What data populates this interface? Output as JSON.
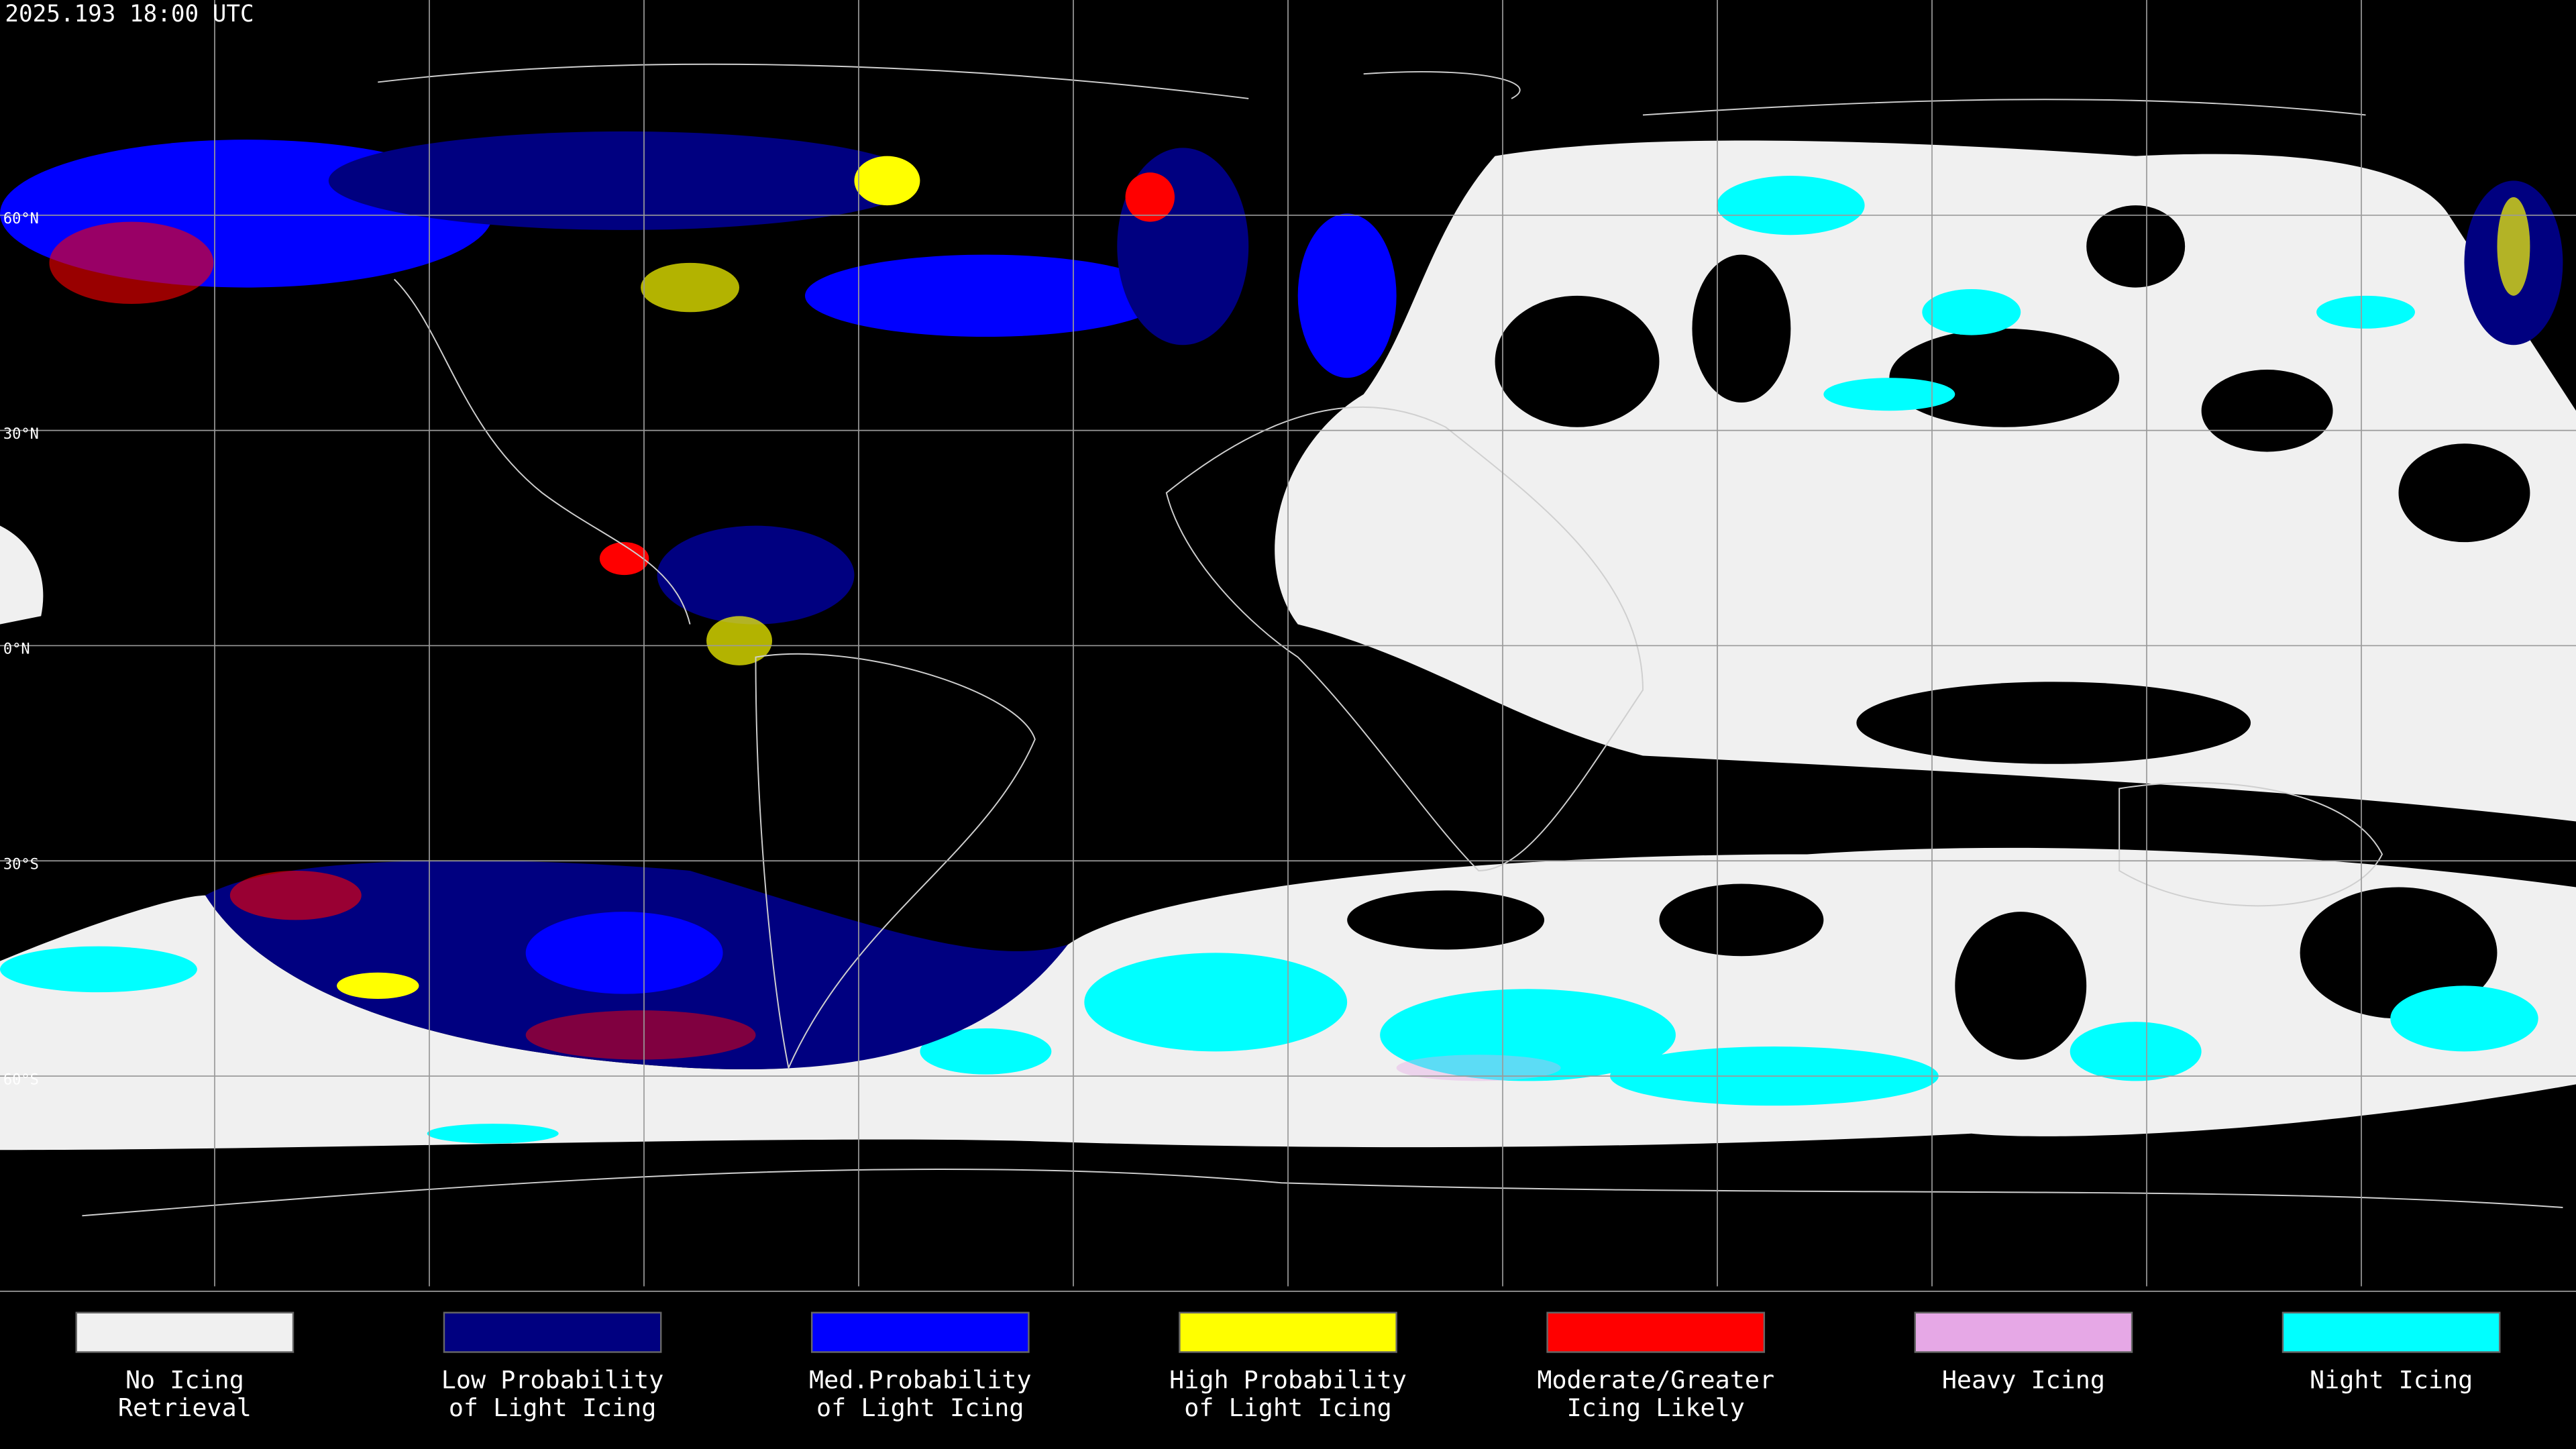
{
  "header": {
    "title": "2025.193 18:00 UTC"
  },
  "map": {
    "lat_labels": [
      "60°N",
      "30°N",
      "0°N",
      "30°S",
      "60°S"
    ]
  },
  "legend": [
    {
      "label": [
        "No Icing",
        "Retrieval"
      ],
      "color": "#f0f0f0"
    },
    {
      "label": [
        "Low Probability",
        "of Light Icing"
      ],
      "color": "#000080"
    },
    {
      "label": [
        "Med.Probability",
        "of Light Icing"
      ],
      "color": "#0000ff"
    },
    {
      "label": [
        "High Probability",
        "of Light Icing"
      ],
      "color": "#ffff00"
    },
    {
      "label": [
        "Moderate/Greater",
        "Icing Likely"
      ],
      "color": "#ff0000"
    },
    {
      "label": [
        "Heavy Icing"
      ],
      "color": "#e6a8e6"
    },
    {
      "label": [
        "Night Icing"
      ],
      "color": "#00ffff"
    }
  ]
}
